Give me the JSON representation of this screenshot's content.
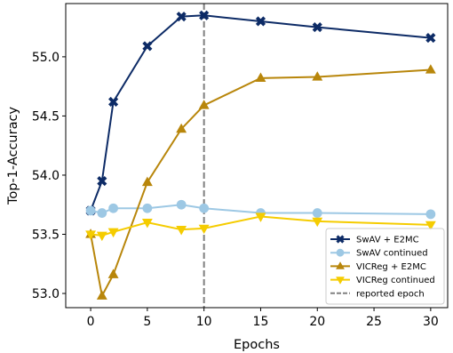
{
  "chart_data": {
    "type": "line",
    "xlabel": "Epochs",
    "ylabel": "Top-1-Accuracy",
    "xlim": [
      -2.2,
      31.5
    ],
    "ylim": [
      52.88,
      55.45
    ],
    "xticks": [
      0,
      5,
      10,
      15,
      20,
      25,
      30
    ],
    "yticks": [
      53.0,
      53.5,
      54.0,
      54.5,
      55.0
    ],
    "ytick_labels": [
      "53.0",
      "53.5",
      "54.0",
      "54.5",
      "55.0"
    ],
    "grid": false,
    "legend_position": "lower-right",
    "reference_line": {
      "x": 10,
      "label": "reported epoch",
      "color": "#808080"
    },
    "series": [
      {
        "name": "SwAV + E2MC",
        "color": "#0d2b66",
        "marker": "x",
        "x": [
          0,
          1,
          2,
          5,
          8,
          10,
          15,
          20,
          30
        ],
        "y": [
          53.7,
          53.95,
          54.62,
          55.09,
          55.34,
          55.35,
          55.3,
          55.25,
          55.16
        ]
      },
      {
        "name": "SwAV continued",
        "color": "#9dc8e4",
        "marker": "o",
        "x": [
          0,
          1,
          2,
          5,
          8,
          10,
          15,
          20,
          30
        ],
        "y": [
          53.7,
          53.68,
          53.72,
          53.72,
          53.75,
          53.72,
          53.68,
          53.68,
          53.67
        ]
      },
      {
        "name": "VICReg + E2MC",
        "color": "#b8860b",
        "marker": "^",
        "x": [
          0,
          1,
          2,
          5,
          8,
          10,
          15,
          20,
          30
        ],
        "y": [
          53.5,
          52.98,
          53.16,
          53.94,
          54.39,
          54.59,
          54.82,
          54.83,
          54.89
        ]
      },
      {
        "name": "VICReg continued",
        "color": "#f5cc00",
        "marker": "v",
        "x": [
          0,
          1,
          2,
          5,
          8,
          10,
          15,
          20,
          30
        ],
        "y": [
          53.5,
          53.49,
          53.52,
          53.6,
          53.54,
          53.55,
          53.65,
          53.61,
          53.58
        ]
      }
    ]
  }
}
